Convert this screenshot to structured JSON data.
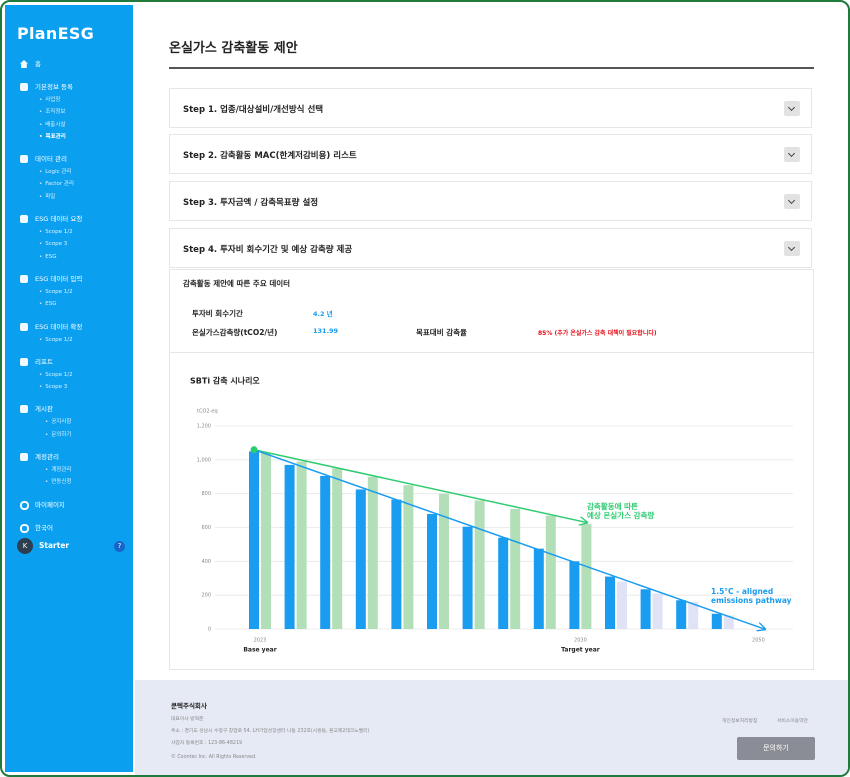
{
  "sidebar": {
    "logo": "PlanESG",
    "nav": [
      {
        "label": "홈"
      },
      {
        "label": "기본정보 등록",
        "children": [
          "사업장",
          "조직정보",
          "배출시설",
          "목표관리"
        ]
      },
      {
        "label": "데이터 관리",
        "children": [
          "Logic 관리",
          "Factor 관리",
          "파일"
        ]
      },
      {
        "label": "ESG 데이터 요청",
        "children": [
          "Scope 1/2",
          "Scope 3",
          "ESG"
        ]
      },
      {
        "label": "ESG 데이터 입력",
        "children": [
          "Scope 1/2",
          "ESG"
        ]
      },
      {
        "label": "ESG 데이터 확정",
        "children": [
          "Scope 1/2"
        ]
      },
      {
        "label": "리포트",
        "children": [
          "Scope 1/2",
          "Scope 3"
        ]
      },
      {
        "label": "게시판",
        "children": [
          "공지사항",
          "문의하기"
        ]
      },
      {
        "label": "계정관리",
        "children": [
          "계정관리",
          "연동신청"
        ]
      },
      {
        "label": "마이페이지"
      },
      {
        "label": "한국어"
      }
    ],
    "user": {
      "initial": "K",
      "name": "Starter",
      "help": "?"
    }
  },
  "header": {
    "title": "온실가스 감축활동 제안"
  },
  "steps": [
    "Step 1. 업종/대상설비/개선방식 선택",
    "Step 2. 감축활동 MAC(한계저감비용) 리스트",
    "Step 3. 투자금액 / 감축목표량 설정",
    "Step 4. 투자비 회수기간 및 예상 감축량 제공"
  ],
  "summary": {
    "title": "감축활동 제안에 따른 주요 데이터",
    "payback_label": "투자비 회수기간",
    "payback_value": "4.2 년",
    "reduction_label": "온실가스감축량(tCO2/년)",
    "reduction_value": "131.99",
    "target_label": "목표대비 감축율",
    "target_value": "85% (추가 온실가스 감축 대책이 필요합니다)"
  },
  "chart_data": {
    "type": "bar",
    "title": "SBTi 감축 시나리오",
    "y_label": "tCO2-eq",
    "categories": [
      "2023",
      null,
      null,
      null,
      null,
      null,
      null,
      null,
      null,
      "2030",
      null,
      null,
      null,
      null,
      "2050"
    ],
    "x_annotations": [
      {
        "index": 0,
        "text": "Base year"
      },
      {
        "index": 9,
        "text": "Target year"
      }
    ],
    "ylim": [
      0,
      1200
    ],
    "yticks": [
      0,
      200,
      400,
      600,
      800,
      {
        "value": 1000,
        "label": "1,000"
      },
      {
        "value": 1200,
        "label": "1,200"
      }
    ],
    "grid": true,
    "series": [
      {
        "color": "#1a9cf0",
        "values": [
          1050,
          970,
          905,
          825,
          765,
          680,
          605,
          540,
          475,
          400,
          310,
          235,
          170,
          90,
          null
        ]
      },
      {
        "color": "#b2dfb8",
        "values": [
          1040,
          990,
          950,
          900,
          850,
          800,
          760,
          710,
          670,
          620,
          null,
          null,
          null,
          null,
          null
        ]
      },
      {
        "color": "#dfe3f5",
        "values": [
          null,
          null,
          null,
          null,
          null,
          null,
          null,
          null,
          null,
          null,
          280,
          210,
          160,
          80,
          null
        ]
      }
    ],
    "lines": [
      {
        "label": [
          "감축활동에 따른",
          "예상 온실가스 감축량"
        ],
        "color": "#2ecc71",
        "x": [
          0,
          9
        ],
        "values": [
          1060,
          630
        ]
      },
      {
        "label": [
          "1.5°C - aligned",
          "emissions pathway"
        ],
        "color": "#1a9cf0",
        "x": [
          0,
          14
        ],
        "values": [
          1060,
          0
        ]
      }
    ]
  },
  "footer": {
    "company": "쿤텍주식회사",
    "lines": [
      "대표이사 방혁준",
      "주소 : 경기도 성남시 수정구 창업로 54, LH기업성장센터 나동 232호(시흥동, 판교제2테크노밸리)",
      "사업자 등록번호 : 123-86-48219"
    ],
    "copyright": "© Coontec Inc. All Rights Reserved.",
    "links": [
      "개인정보처리방침",
      "서비스이용약관"
    ],
    "button": "문의하기"
  }
}
